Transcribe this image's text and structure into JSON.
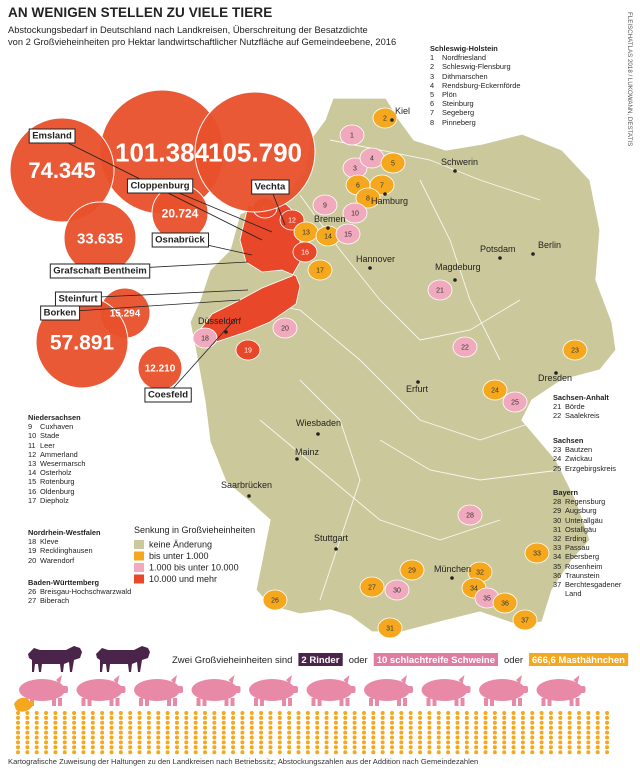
{
  "header": {
    "title": "AN WENIGEN STELLEN ZU VIELE TIERE",
    "subtitle_lines": [
      "Abstockungsbedarf in Deutschland nach Landkreisen, Überschreitung der Besatzdichte",
      "von 2 Großvieheinheiten pro Hektar landwirtschaftlicher Nutzfläche auf Gemeindeebene, 2016"
    ]
  },
  "credit": "FLEISCHATLAS 2018 / LUKOWANN, DESTATIS",
  "bubbles": [
    {
      "label": "Cloppenburg",
      "value": "101.384"
    },
    {
      "label": "Vechta",
      "value": "105.790"
    },
    {
      "label": "Emsland",
      "value": "74.345"
    },
    {
      "label": "Osnabrück",
      "value": "20.724"
    },
    {
      "label": "Grafschaft Bentheim",
      "value": "33.635"
    },
    {
      "label": "Steinfurt",
      "value": "15.294"
    },
    {
      "label": "Borken",
      "value": "57.891"
    },
    {
      "label": "Coesfeld",
      "value": "12.210"
    }
  ],
  "cities": [
    "Kiel",
    "Schwerin",
    "Hamburg",
    "Bremen",
    "Berlin",
    "Potsdam",
    "Hannover",
    "Magdeburg",
    "Düsseldorf",
    "Erfurt",
    "Dresden",
    "Wiesbaden",
    "Mainz",
    "Saarbrücken",
    "Stuttgart",
    "München"
  ],
  "regions": [
    {
      "title": "Schleswig-Holstein",
      "items": [
        {
          "num": 1,
          "name": "Nordfriesland"
        },
        {
          "num": 2,
          "name": "Schleswig-Flensburg"
        },
        {
          "num": 3,
          "name": "Dithmarschen"
        },
        {
          "num": 4,
          "name": "Rendsburg-Eckernförde"
        },
        {
          "num": 5,
          "name": "Plön"
        },
        {
          "num": 6,
          "name": "Steinburg"
        },
        {
          "num": 7,
          "name": "Segeberg"
        },
        {
          "num": 8,
          "name": "Pinneberg"
        }
      ]
    },
    {
      "title": "Niedersachsen",
      "items": [
        {
          "num": 9,
          "name": "Cuxhaven"
        },
        {
          "num": 10,
          "name": "Stade"
        },
        {
          "num": 11,
          "name": "Leer"
        },
        {
          "num": 12,
          "name": "Ammerland"
        },
        {
          "num": 13,
          "name": "Wesermarsch"
        },
        {
          "num": 14,
          "name": "Osterholz"
        },
        {
          "num": 15,
          "name": "Rotenburg"
        },
        {
          "num": 16,
          "name": "Oldenburg"
        },
        {
          "num": 17,
          "name": "Diepholz"
        }
      ]
    },
    {
      "title": "Nordrhein-Westfalen",
      "items": [
        {
          "num": 18,
          "name": "Kleve"
        },
        {
          "num": 19,
          "name": "Recklinghausen"
        },
        {
          "num": 20,
          "name": "Warendorf"
        }
      ]
    },
    {
      "title": "Baden-Württemberg",
      "items": [
        {
          "num": 26,
          "name": "Breisgau-Hochschwarzwald"
        },
        {
          "num": 27,
          "name": "Biberach"
        }
      ]
    },
    {
      "title": "Sachsen-Anhalt",
      "items": [
        {
          "num": 21,
          "name": "Börde"
        },
        {
          "num": 22,
          "name": "Saalekreis"
        }
      ]
    },
    {
      "title": "Sachsen",
      "items": [
        {
          "num": 23,
          "name": "Bautzen"
        },
        {
          "num": 24,
          "name": "Zwickau"
        },
        {
          "num": 25,
          "name": "Erzgebirgskreis"
        }
      ]
    },
    {
      "title": "Bayern",
      "items": [
        {
          "num": 28,
          "name": "Regensburg"
        },
        {
          "num": 29,
          "name": "Augsburg"
        },
        {
          "num": 30,
          "name": "Unterallgäu"
        },
        {
          "num": 31,
          "name": "Ostallgäu"
        },
        {
          "num": 32,
          "name": "Erding"
        },
        {
          "num": 33,
          "name": "Passau"
        },
        {
          "num": 34,
          "name": "Ebersberg"
        },
        {
          "num": 35,
          "name": "Rosenheim"
        },
        {
          "num": 36,
          "name": "Traunstein"
        },
        {
          "num": 37,
          "name": "Berchtesgadener Land"
        }
      ]
    }
  ],
  "map_legend": {
    "title": "Senkung in Großvieheinheiten",
    "items": [
      {
        "label": "keine Änderung",
        "color": "#cbc99b"
      },
      {
        "label": "bis unter 1.000",
        "color": "#f5a81e"
      },
      {
        "label": "1.000 bis unter 10.000",
        "color": "#f0a9bd"
      },
      {
        "label": "10.000 und mehr",
        "color": "#e8472a"
      }
    ]
  },
  "equivalence": {
    "intro": "Zwei Großvieheinheiten sind",
    "cattle": "2 Rinder",
    "or": "oder",
    "pigs": "10 schlachtreife Schweine",
    "chickens": "666,6 Masthähnchen"
  },
  "footer": "Kartografische Zuweisung der Haltungen zu den Landkreisen nach Betriebssitz; Abstockungszahlen aus der Addition nach Gemeindezahlen"
}
